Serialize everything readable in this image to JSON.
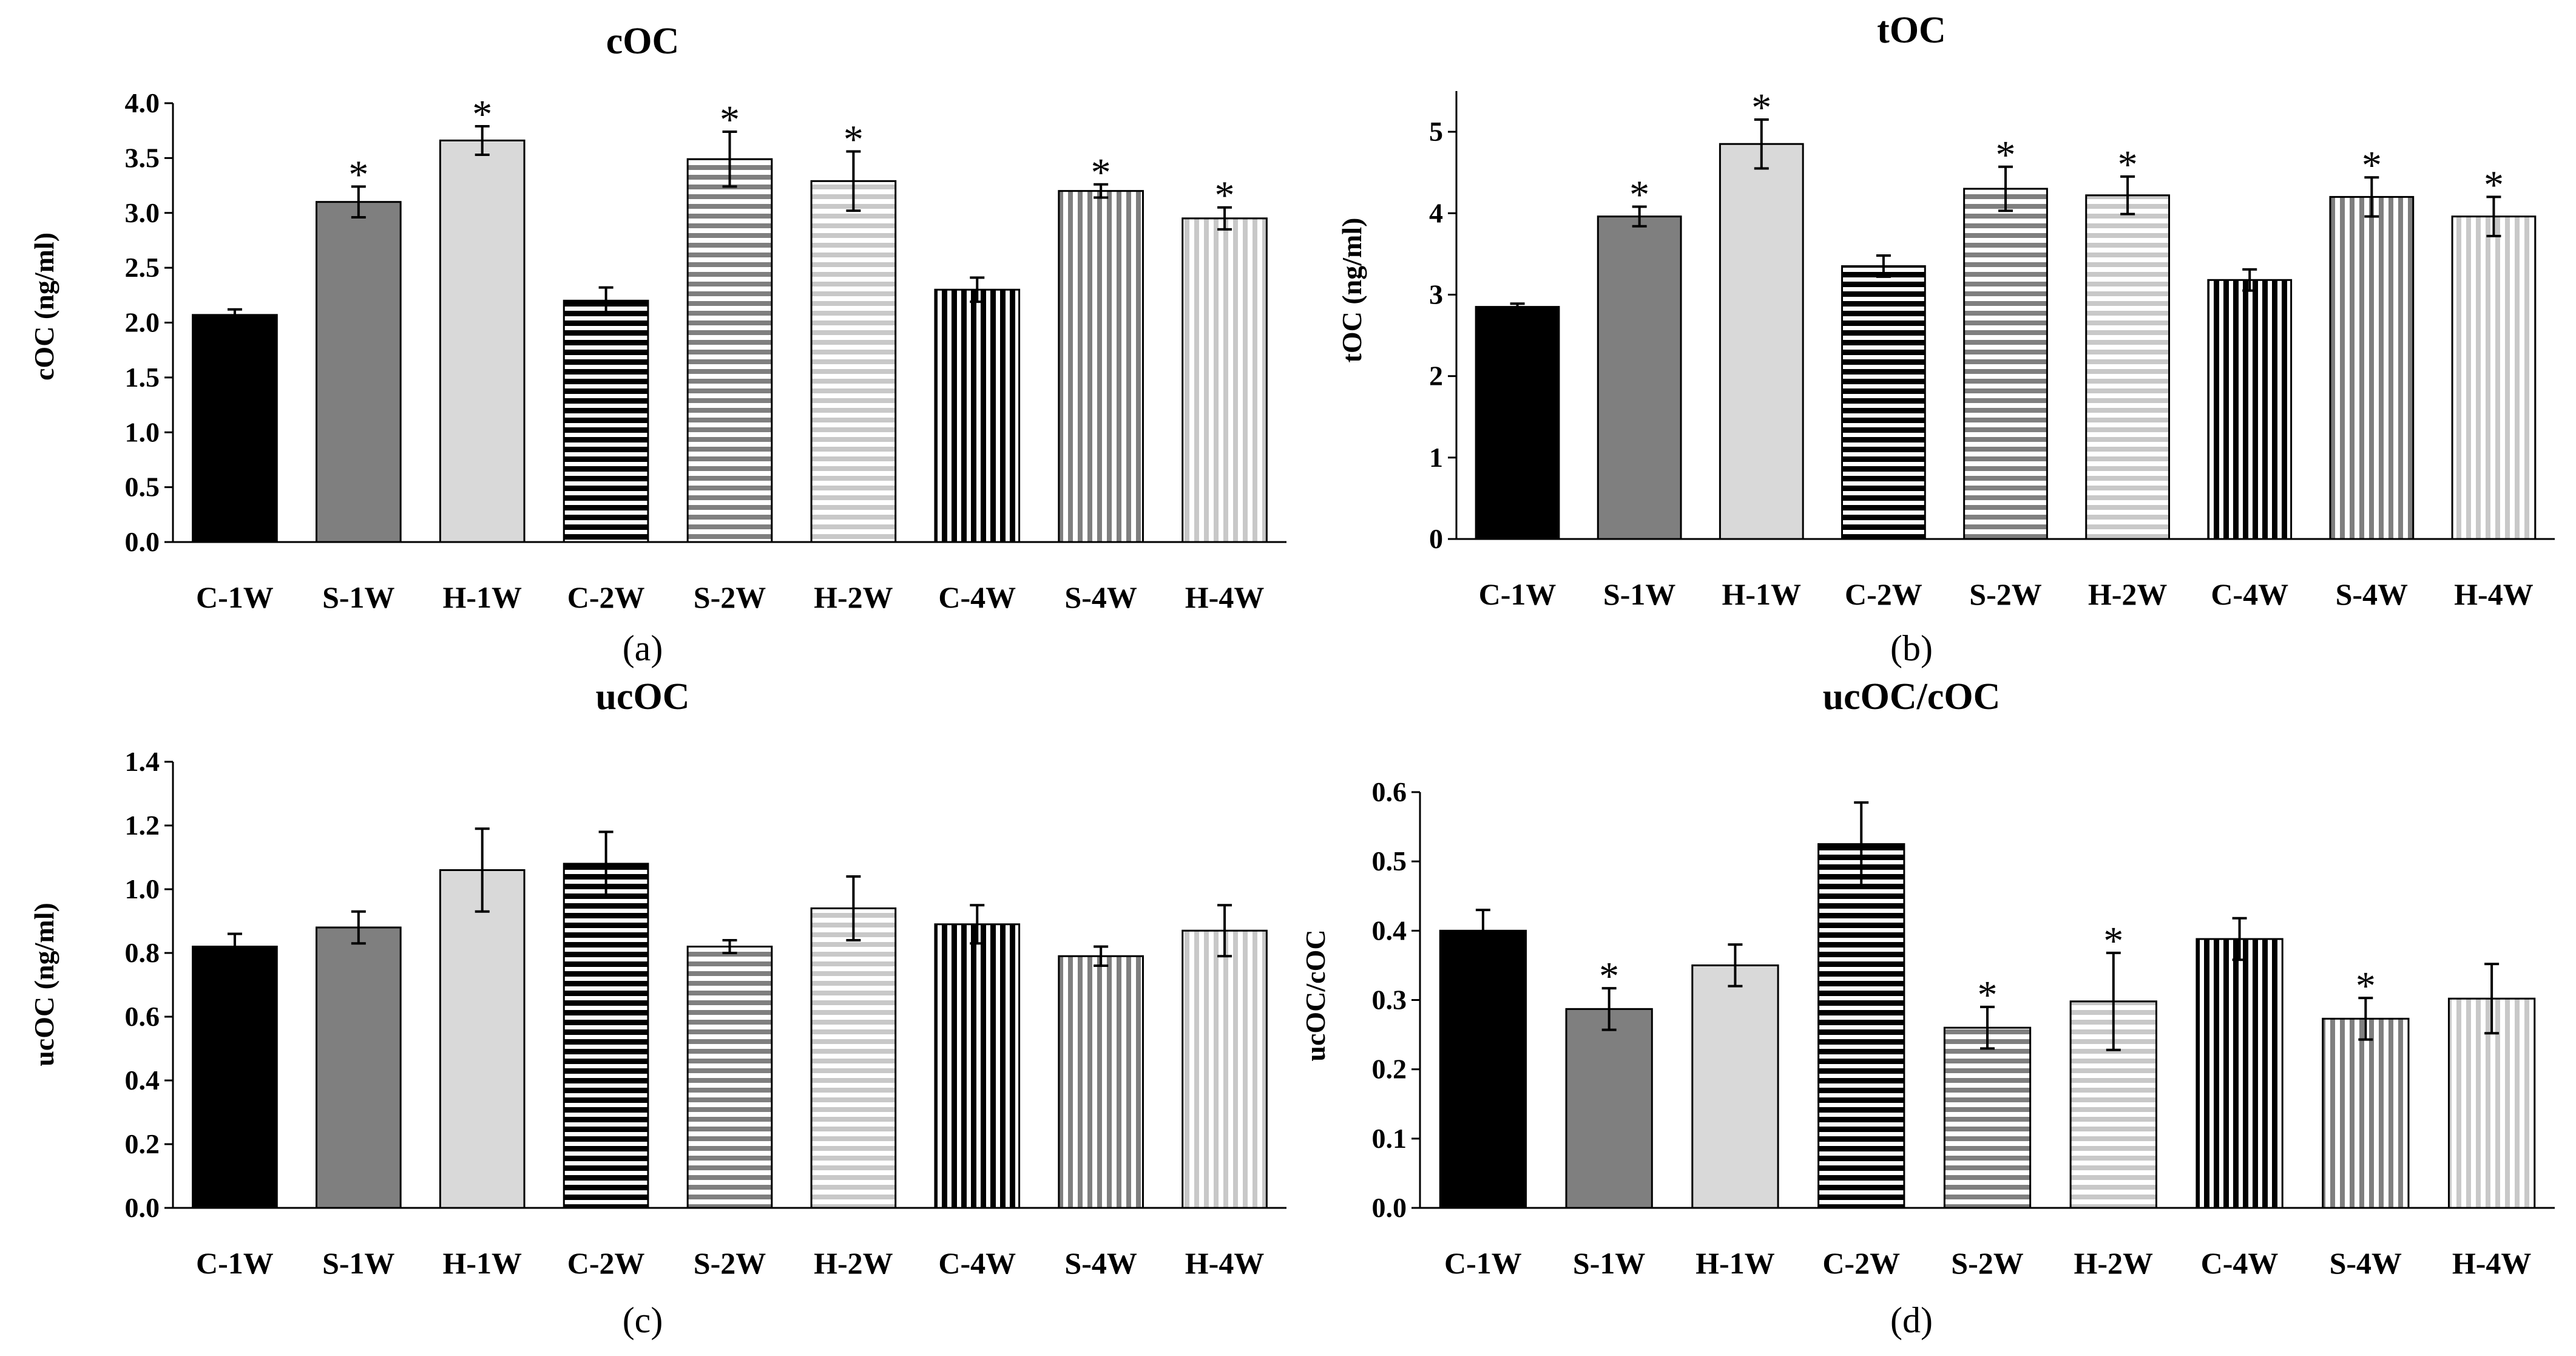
{
  "chart_data": [
    {
      "panel": "(a)",
      "title": "cOC",
      "ylabel": "cOC (ng/ml)",
      "type": "bar",
      "categories": [
        "C-1W",
        "S-1W",
        "H-1W",
        "C-2W",
        "S-2W",
        "H-2W",
        "C-4W",
        "S-4W",
        "H-4W"
      ],
      "values": [
        2.07,
        3.1,
        3.66,
        2.2,
        3.49,
        3.29,
        2.3,
        3.2,
        2.95
      ],
      "errors": [
        0.05,
        0.14,
        0.13,
        0.12,
        0.25,
        0.27,
        0.11,
        0.06,
        0.1
      ],
      "significant": [
        false,
        true,
        true,
        false,
        true,
        true,
        false,
        true,
        true
      ],
      "ylim": [
        0,
        4
      ],
      "yticks": [
        "0.0",
        "0.5",
        "1.0",
        "1.5",
        "2.0",
        "2.5",
        "3.0",
        "3.5",
        "4.0"
      ],
      "grid": false
    },
    {
      "panel": "(b)",
      "title": "tOC",
      "ylabel": "tOC (ng/ml)",
      "type": "bar",
      "categories": [
        "C-1W",
        "S-1W",
        "H-1W",
        "C-2W",
        "S-2W",
        "H-2W",
        "C-4W",
        "S-4W",
        "H-4W"
      ],
      "values": [
        2.85,
        3.96,
        4.85,
        3.35,
        4.3,
        4.22,
        3.18,
        4.2,
        3.96
      ],
      "errors": [
        0.04,
        0.12,
        0.3,
        0.13,
        0.27,
        0.23,
        0.13,
        0.24,
        0.24
      ],
      "significant": [
        false,
        true,
        true,
        false,
        true,
        true,
        false,
        true,
        true
      ],
      "ylim": [
        0,
        5.5
      ],
      "yticks": [
        "0",
        "1",
        "2",
        "3",
        "4",
        "5"
      ],
      "grid": false
    },
    {
      "panel": "(c)",
      "title": "ucOC",
      "ylabel": "ucOC (ng/ml)",
      "type": "bar",
      "categories": [
        "C-1W",
        "S-1W",
        "H-1W",
        "C-2W",
        "S-2W",
        "H-2W",
        "C-4W",
        "S-4W",
        "H-4W"
      ],
      "values": [
        0.82,
        0.88,
        1.06,
        1.08,
        0.82,
        0.94,
        0.89,
        0.79,
        0.87
      ],
      "errors": [
        0.04,
        0.05,
        0.13,
        0.1,
        0.02,
        0.1,
        0.06,
        0.03,
        0.08
      ],
      "significant": [
        false,
        false,
        false,
        false,
        false,
        false,
        false,
        false,
        false
      ],
      "ylim": [
        0,
        1.4
      ],
      "yticks": [
        "0.0",
        "0.2",
        "0.4",
        "0.6",
        "0.8",
        "1.0",
        "1.2",
        "1.4"
      ],
      "grid": false
    },
    {
      "panel": "(d)",
      "title": "ucOC/cOC",
      "ylabel": "ucOC/cOC",
      "type": "bar",
      "categories": [
        "C-1W",
        "S-1W",
        "H-1W",
        "C-2W",
        "S-2W",
        "H-2W",
        "C-4W",
        "S-4W",
        "H-4W"
      ],
      "values": [
        0.4,
        0.287,
        0.35,
        0.525,
        0.26,
        0.298,
        0.388,
        0.273,
        0.302
      ],
      "errors": [
        0.03,
        0.03,
        0.03,
        0.06,
        0.03,
        0.07,
        0.03,
        0.03,
        0.05
      ],
      "significant": [
        false,
        true,
        false,
        false,
        true,
        true,
        false,
        true,
        false
      ],
      "ylim": [
        0,
        0.6
      ],
      "yticks": [
        "0.0",
        "0.1",
        "0.2",
        "0.3",
        "0.4",
        "0.5",
        "0.6"
      ],
      "grid": false
    }
  ],
  "significance_symbol": "*",
  "bar_styles": [
    {
      "fill": "#000000",
      "pattern": "solid"
    },
    {
      "fill": "#7f7f7f",
      "pattern": "solid"
    },
    {
      "fill": "#d9d9d9",
      "pattern": "solid"
    },
    {
      "fill": "#000000",
      "pattern": "horizontal"
    },
    {
      "fill": "#7f7f7f",
      "pattern": "horizontal"
    },
    {
      "fill": "#c8c8c8",
      "pattern": "horizontal"
    },
    {
      "fill": "#000000",
      "pattern": "vertical"
    },
    {
      "fill": "#7f7f7f",
      "pattern": "vertical"
    },
    {
      "fill": "#c8c8c8",
      "pattern": "vertical"
    }
  ]
}
